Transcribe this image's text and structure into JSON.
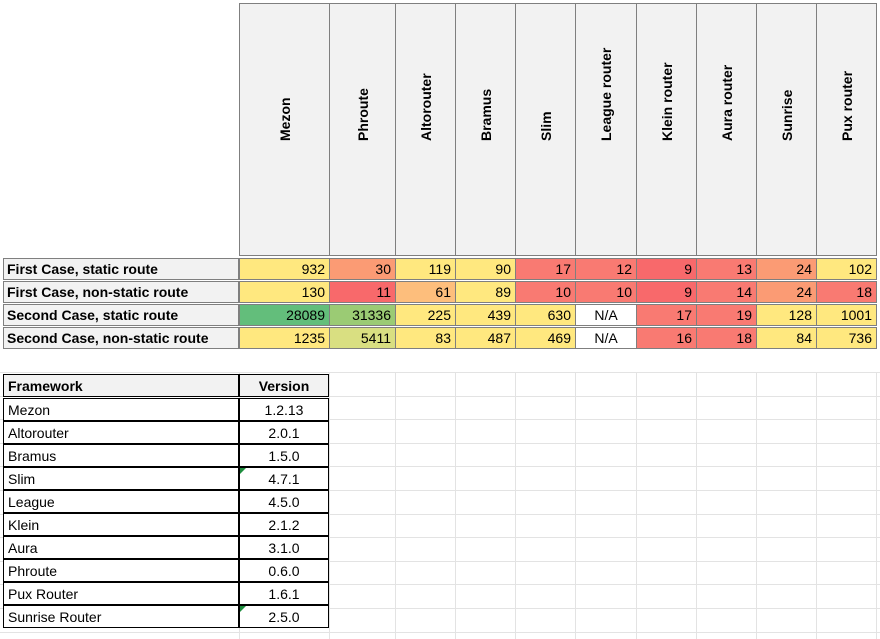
{
  "matrix": {
    "columns": [
      "Mezon",
      "Phroute",
      "Altorouter",
      "Bramus",
      "Slim",
      "League router",
      "Klein router",
      "Aura router",
      "Sunrise",
      "Pux router"
    ],
    "rows": [
      {
        "label": "First Case, static route",
        "values": [
          "932",
          "30",
          "119",
          "90",
          "17",
          "12",
          "9",
          "13",
          "24",
          "102"
        ],
        "colors": [
          "#ffe87f",
          "#fb9b74",
          "#ffe87f",
          "#ffe87f",
          "#f97a72",
          "#f97a72",
          "#f8696b",
          "#f97a72",
          "#fb9b74",
          "#ffe87f"
        ]
      },
      {
        "label": "First Case, non-static route",
        "values": [
          "130",
          "11",
          "61",
          "89",
          "10",
          "10",
          "9",
          "14",
          "24",
          "18"
        ],
        "colors": [
          "#ffe87f",
          "#f8696b",
          "#fdbe7c",
          "#ffe87f",
          "#f97a72",
          "#f97a72",
          "#f8696b",
          "#f97a72",
          "#fb9b74",
          "#f97a72"
        ]
      },
      {
        "label": "Second Case, static route",
        "values": [
          "28089",
          "31336",
          "225",
          "439",
          "630",
          "N/A",
          "17",
          "19",
          "128",
          "1001"
        ],
        "colors": [
          "#63be7b",
          "#9bcb74",
          "#ffe87f",
          "#ffe87f",
          "#ffe87f",
          "#ffffff",
          "#f97a72",
          "#f97a72",
          "#ffe87f",
          "#ffe87f"
        ]
      },
      {
        "label": "Second Case, non-static route",
        "values": [
          "1235",
          "5411",
          "83",
          "487",
          "469",
          "N/A",
          "16",
          "18",
          "84",
          "736"
        ],
        "colors": [
          "#ffe87f",
          "#d9df81",
          "#ffe87f",
          "#ffe87f",
          "#ffe87f",
          "#ffffff",
          "#f97a72",
          "#f97a72",
          "#ffe87f",
          "#ffe87f"
        ]
      }
    ]
  },
  "versions": {
    "header_framework": "Framework",
    "header_version": "Version",
    "rows": [
      {
        "framework": "Mezon",
        "version": "1.2.13"
      },
      {
        "framework": "Altorouter",
        "version": "2.0.1"
      },
      {
        "framework": "Bramus",
        "version": "1.5.0"
      },
      {
        "framework": "Slim",
        "version": "4.7.1",
        "flag": true
      },
      {
        "framework": "League",
        "version": "4.5.0"
      },
      {
        "framework": "Klein",
        "version": "2.1.2"
      },
      {
        "framework": "Aura",
        "version": "3.1.0"
      },
      {
        "framework": "Phroute",
        "version": "0.6.0"
      },
      {
        "framework": "Pux Router",
        "version": "1.6.1"
      },
      {
        "framework": "Sunrise Router",
        "version": "2.5.0",
        "flag": true
      }
    ]
  }
}
